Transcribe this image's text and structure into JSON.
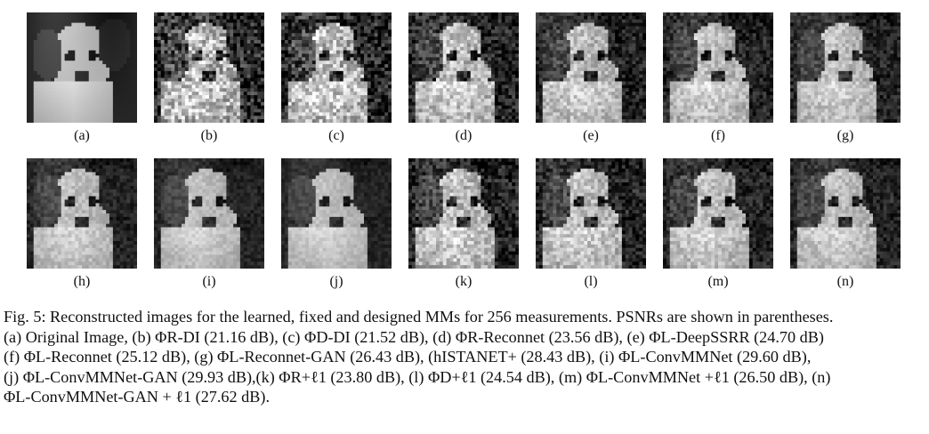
{
  "figure": {
    "panels": [
      {
        "label": "(a)",
        "noise": 0.0
      },
      {
        "label": "(b)",
        "noise": 0.55
      },
      {
        "label": "(c)",
        "noise": 0.5
      },
      {
        "label": "(d)",
        "noise": 0.38
      },
      {
        "label": "(e)",
        "noise": 0.3
      },
      {
        "label": "(f)",
        "noise": 0.28
      },
      {
        "label": "(g)",
        "noise": 0.24
      },
      {
        "label": "(h)",
        "noise": 0.18
      },
      {
        "label": "(i)",
        "noise": 0.14
      },
      {
        "label": "(j)",
        "noise": 0.12
      },
      {
        "label": "(k)",
        "noise": 0.36
      },
      {
        "label": "(l)",
        "noise": 0.32
      },
      {
        "label": "(m)",
        "noise": 0.26
      },
      {
        "label": "(n)",
        "noise": 0.22
      }
    ],
    "caption_lines": [
      "Fig. 5: Reconstructed images for the learned, fixed and designed MMs for 256 measurements. PSNRs are shown in parentheses.",
      "(a) Original Image, (b) ΦR-DI (21.16 dB), (c) ΦD-DI (21.52 dB), (d) ΦR-Reconnet (23.56 dB), (e) ΦL-DeepSSRR (24.70 dB)",
      "(f) ΦL-Reconnet (25.12 dB), (g) ΦL-Reconnet-GAN (26.43 dB), (hISTANET+ (28.43 dB), (i) ΦL-ConvMMNet (29.60 dB),",
      "(j) ΦL-ConvMMNet-GAN (29.93 dB),(k) ΦR+ℓ1 (23.80 dB), (l) ΦD+ℓ1 (24.54 dB), (m) ΦL-ConvMMNet +ℓ1 (26.50 dB), (n)",
      "ΦL-ConvMMNet-GAN + ℓ1 (27.62 dB)."
    ]
  }
}
